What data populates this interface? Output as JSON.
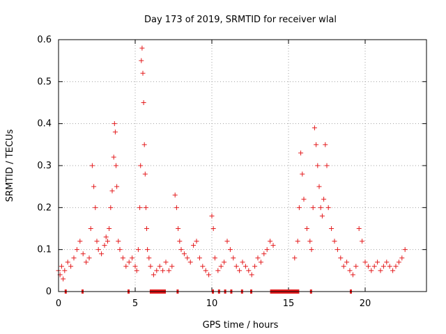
{
  "chart_data": {
    "type": "scatter",
    "title": "Day 173 of 2019, SRMTID for receiver wlal",
    "xlabel": "GPS time / hours",
    "ylabel": "SRMTID / TECUs",
    "xlim": [
      0,
      24
    ],
    "ylim": [
      0,
      0.6
    ],
    "xticks": [
      0,
      5,
      10,
      15,
      20
    ],
    "yticks": [
      0,
      0.1,
      0.2,
      0.3,
      0.4,
      0.5,
      0.6
    ],
    "grid": true,
    "marker": "+",
    "color": "#e41a1c",
    "series": [
      {
        "name": "SRMTID",
        "x": [
          0.0,
          0.1,
          0.2,
          0.3,
          0.4,
          0.6,
          0.8,
          1.0,
          1.2,
          1.4,
          1.6,
          1.8,
          2.0,
          2.1,
          2.2,
          2.3,
          2.4,
          2.5,
          2.6,
          2.8,
          3.0,
          3.1,
          3.2,
          3.3,
          3.4,
          3.5,
          3.6,
          3.65,
          3.7,
          3.75,
          3.8,
          3.9,
          4.0,
          4.2,
          4.4,
          4.6,
          4.8,
          5.0,
          5.1,
          5.2,
          5.3,
          5.35,
          5.4,
          5.45,
          5.5,
          5.55,
          5.6,
          5.65,
          5.7,
          5.75,
          5.8,
          5.9,
          6.0,
          6.2,
          6.4,
          6.6,
          6.8,
          7.0,
          7.2,
          7.4,
          7.6,
          7.7,
          7.8,
          7.9,
          8.0,
          8.2,
          8.4,
          8.6,
          8.8,
          9.0,
          9.2,
          9.4,
          9.6,
          9.8,
          10.0,
          10.1,
          10.2,
          10.4,
          10.6,
          10.8,
          11.0,
          11.2,
          11.4,
          11.6,
          11.8,
          12.0,
          12.2,
          12.4,
          12.6,
          12.8,
          13.0,
          13.2,
          13.4,
          13.6,
          13.8,
          14.0,
          15.4,
          15.6,
          15.7,
          15.8,
          15.9,
          16.0,
          16.2,
          16.4,
          16.5,
          16.6,
          16.7,
          16.8,
          16.9,
          17.0,
          17.1,
          17.2,
          17.3,
          17.4,
          17.5,
          17.6,
          17.8,
          18.0,
          18.2,
          18.4,
          18.6,
          18.8,
          19.0,
          19.2,
          19.4,
          19.6,
          19.8,
          20.0,
          20.2,
          20.4,
          20.6,
          20.8,
          21.0,
          21.2,
          21.4,
          21.6,
          21.8,
          22.0,
          22.2,
          22.4,
          22.6
        ],
        "y": [
          0.05,
          0.04,
          0.06,
          0.03,
          0.05,
          0.07,
          0.06,
          0.08,
          0.1,
          0.12,
          0.09,
          0.07,
          0.08,
          0.15,
          0.3,
          0.25,
          0.2,
          0.12,
          0.1,
          0.09,
          0.11,
          0.13,
          0.12,
          0.15,
          0.2,
          0.24,
          0.32,
          0.4,
          0.38,
          0.3,
          0.25,
          0.12,
          0.1,
          0.08,
          0.06,
          0.07,
          0.08,
          0.06,
          0.05,
          0.1,
          0.2,
          0.3,
          0.55,
          0.58,
          0.52,
          0.45,
          0.35,
          0.28,
          0.2,
          0.15,
          0.1,
          0.08,
          0.06,
          0.04,
          0.05,
          0.06,
          0.05,
          0.07,
          0.05,
          0.06,
          0.23,
          0.2,
          0.15,
          0.12,
          0.1,
          0.09,
          0.08,
          0.07,
          0.11,
          0.12,
          0.08,
          0.06,
          0.05,
          0.04,
          0.18,
          0.15,
          0.08,
          0.05,
          0.06,
          0.07,
          0.12,
          0.1,
          0.08,
          0.06,
          0.05,
          0.07,
          0.06,
          0.05,
          0.04,
          0.06,
          0.08,
          0.07,
          0.09,
          0.1,
          0.12,
          0.11,
          0.08,
          0.12,
          0.2,
          0.33,
          0.28,
          0.22,
          0.15,
          0.12,
          0.1,
          0.2,
          0.39,
          0.35,
          0.3,
          0.25,
          0.2,
          0.18,
          0.22,
          0.35,
          0.3,
          0.2,
          0.15,
          0.12,
          0.1,
          0.08,
          0.06,
          0.07,
          0.05,
          0.04,
          0.06,
          0.15,
          0.12,
          0.07,
          0.06,
          0.05,
          0.06,
          0.07,
          0.05,
          0.06,
          0.07,
          0.06,
          0.05,
          0.06,
          0.07,
          0.08,
          0.1
        ],
        "gaps_at_zero": [
          [
            0.4,
            0.45
          ],
          [
            1.5,
            1.55
          ],
          [
            4.5,
            4.6
          ],
          [
            5.95,
            7.0
          ],
          [
            7.7,
            7.8
          ],
          [
            10.0,
            10.1
          ],
          [
            10.4,
            10.45
          ],
          [
            10.8,
            10.85
          ],
          [
            11.2,
            11.3
          ],
          [
            11.9,
            11.95
          ],
          [
            12.5,
            12.55
          ],
          [
            13.8,
            15.7
          ],
          [
            16.4,
            16.5
          ],
          [
            19.0,
            19.1
          ]
        ]
      }
    ]
  }
}
